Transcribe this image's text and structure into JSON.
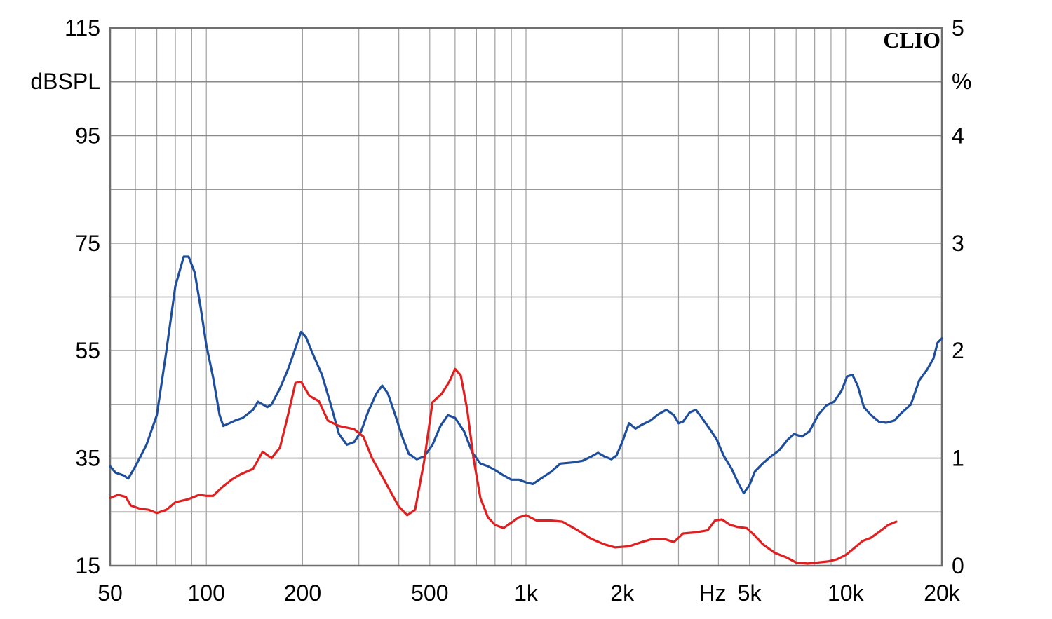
{
  "chart_data": {
    "type": "line",
    "brand": "CLIO",
    "x_scale": "log",
    "xlim": [
      50,
      20000
    ],
    "ylim_left": [
      15,
      115
    ],
    "ylim_right": [
      0,
      5
    ],
    "left_unit": "dBSPL",
    "right_unit": "%",
    "x_unit": "Hz",
    "x_ticks": [
      {
        "value": 50,
        "label": "50"
      },
      {
        "value": 100,
        "label": "100"
      },
      {
        "value": 200,
        "label": "200"
      },
      {
        "value": 500,
        "label": "500"
      },
      {
        "value": 1000,
        "label": "1k"
      },
      {
        "value": 2000,
        "label": "2k"
      },
      {
        "value": 5000,
        "label": "5k"
      },
      {
        "value": 10000,
        "label": "10k"
      },
      {
        "value": 20000,
        "label": "20k"
      }
    ],
    "left_ticks": [
      "115",
      "95",
      "75",
      "55",
      "35",
      "15"
    ],
    "right_ticks": [
      "5",
      "4",
      "3",
      "2",
      "1",
      "0"
    ],
    "grid": true,
    "series": [
      {
        "color": "#1f4e9c",
        "axis": "left",
        "points": [
          [
            50,
            33.5
          ],
          [
            52,
            32.3
          ],
          [
            55,
            31.8
          ],
          [
            57,
            31.2
          ],
          [
            60,
            33.5
          ],
          [
            65,
            37.5
          ],
          [
            70,
            43
          ],
          [
            75,
            55
          ],
          [
            80,
            67
          ],
          [
            85,
            72.5
          ],
          [
            88,
            72.5
          ],
          [
            92,
            69.5
          ],
          [
            96,
            63
          ],
          [
            100,
            56
          ],
          [
            105,
            50
          ],
          [
            110,
            43
          ],
          [
            113,
            41
          ],
          [
            118,
            41.5
          ],
          [
            123,
            42
          ],
          [
            130,
            42.5
          ],
          [
            140,
            44
          ],
          [
            145,
            45.5
          ],
          [
            150,
            45
          ],
          [
            155,
            44.5
          ],
          [
            160,
            45
          ],
          [
            170,
            48
          ],
          [
            180,
            51.5
          ],
          [
            190,
            55.5
          ],
          [
            198,
            58.5
          ],
          [
            205,
            57.5
          ],
          [
            215,
            54.5
          ],
          [
            230,
            50.5
          ],
          [
            245,
            45
          ],
          [
            260,
            39.5
          ],
          [
            275,
            37.5
          ],
          [
            290,
            38
          ],
          [
            305,
            40
          ],
          [
            320,
            43.5
          ],
          [
            340,
            47
          ],
          [
            355,
            48.5
          ],
          [
            370,
            47
          ],
          [
            390,
            43
          ],
          [
            410,
            39
          ],
          [
            430,
            35.8
          ],
          [
            455,
            34.8
          ],
          [
            480,
            35.3
          ],
          [
            510,
            37.5
          ],
          [
            540,
            41
          ],
          [
            570,
            43
          ],
          [
            600,
            42.5
          ],
          [
            640,
            40
          ],
          [
            680,
            36
          ],
          [
            720,
            34
          ],
          [
            760,
            33.5
          ],
          [
            800,
            32.8
          ],
          [
            850,
            31.8
          ],
          [
            900,
            31
          ],
          [
            950,
            31
          ],
          [
            1000,
            30.5
          ],
          [
            1050,
            30.2
          ],
          [
            1100,
            31
          ],
          [
            1200,
            32.5
          ],
          [
            1280,
            34
          ],
          [
            1400,
            34.2
          ],
          [
            1500,
            34.5
          ],
          [
            1600,
            35.3
          ],
          [
            1680,
            36
          ],
          [
            1760,
            35.3
          ],
          [
            1850,
            34.8
          ],
          [
            1920,
            35.5
          ],
          [
            2000,
            38
          ],
          [
            2100,
            41.5
          ],
          [
            2200,
            40.5
          ],
          [
            2300,
            41.2
          ],
          [
            2450,
            42
          ],
          [
            2600,
            43.2
          ],
          [
            2750,
            44
          ],
          [
            2900,
            43
          ],
          [
            3000,
            41.5
          ],
          [
            3100,
            41.8
          ],
          [
            3250,
            43.5
          ],
          [
            3400,
            44
          ],
          [
            3550,
            42.5
          ],
          [
            3750,
            40.5
          ],
          [
            3950,
            38.5
          ],
          [
            4150,
            35.5
          ],
          [
            4400,
            33
          ],
          [
            4600,
            30.5
          ],
          [
            4800,
            28.5
          ],
          [
            5000,
            30
          ],
          [
            5200,
            32.5
          ],
          [
            5500,
            34
          ],
          [
            5800,
            35.2
          ],
          [
            6200,
            36.5
          ],
          [
            6600,
            38.5
          ],
          [
            6900,
            39.5
          ],
          [
            7300,
            39
          ],
          [
            7700,
            40
          ],
          [
            8200,
            43
          ],
          [
            8700,
            44.8
          ],
          [
            9200,
            45.5
          ],
          [
            9700,
            47.5
          ],
          [
            10100,
            50.2
          ],
          [
            10500,
            50.5
          ],
          [
            10900,
            48.5
          ],
          [
            11400,
            44.5
          ],
          [
            12000,
            43
          ],
          [
            12700,
            41.8
          ],
          [
            13400,
            41.6
          ],
          [
            14200,
            42
          ],
          [
            15000,
            43.5
          ],
          [
            16000,
            45
          ],
          [
            17000,
            49.5
          ],
          [
            18000,
            51.5
          ],
          [
            18800,
            53.5
          ],
          [
            19400,
            56.5
          ],
          [
            20000,
            57.3
          ]
        ]
      },
      {
        "color": "#e02020",
        "axis": "right",
        "points": [
          [
            50,
            0.63
          ],
          [
            53,
            0.66
          ],
          [
            56,
            0.64
          ],
          [
            58,
            0.56
          ],
          [
            62,
            0.53
          ],
          [
            66,
            0.52
          ],
          [
            70,
            0.49
          ],
          [
            75,
            0.52
          ],
          [
            80,
            0.59
          ],
          [
            88,
            0.62
          ],
          [
            95,
            0.66
          ],
          [
            100,
            0.65
          ],
          [
            105,
            0.65
          ],
          [
            112,
            0.73
          ],
          [
            120,
            0.8
          ],
          [
            128,
            0.85
          ],
          [
            140,
            0.9
          ],
          [
            150,
            1.06
          ],
          [
            160,
            1.0
          ],
          [
            170,
            1.1
          ],
          [
            180,
            1.4
          ],
          [
            190,
            1.7
          ],
          [
            198,
            1.71
          ],
          [
            210,
            1.58
          ],
          [
            225,
            1.53
          ],
          [
            240,
            1.35
          ],
          [
            260,
            1.3
          ],
          [
            290,
            1.27
          ],
          [
            310,
            1.2
          ],
          [
            330,
            1.0
          ],
          [
            355,
            0.83
          ],
          [
            380,
            0.67
          ],
          [
            400,
            0.55
          ],
          [
            425,
            0.47
          ],
          [
            450,
            0.52
          ],
          [
            480,
            0.97
          ],
          [
            510,
            1.52
          ],
          [
            545,
            1.6
          ],
          [
            575,
            1.71
          ],
          [
            600,
            1.83
          ],
          [
            625,
            1.77
          ],
          [
            655,
            1.45
          ],
          [
            685,
            1.0
          ],
          [
            720,
            0.63
          ],
          [
            760,
            0.45
          ],
          [
            800,
            0.38
          ],
          [
            850,
            0.35
          ],
          [
            900,
            0.4
          ],
          [
            950,
            0.45
          ],
          [
            1000,
            0.47
          ],
          [
            1080,
            0.42
          ],
          [
            1200,
            0.42
          ],
          [
            1300,
            0.41
          ],
          [
            1450,
            0.33
          ],
          [
            1600,
            0.25
          ],
          [
            1750,
            0.2
          ],
          [
            1900,
            0.17
          ],
          [
            2100,
            0.18
          ],
          [
            2300,
            0.22
          ],
          [
            2500,
            0.25
          ],
          [
            2700,
            0.25
          ],
          [
            2900,
            0.22
          ],
          [
            3100,
            0.3
          ],
          [
            3400,
            0.31
          ],
          [
            3700,
            0.33
          ],
          [
            3900,
            0.42
          ],
          [
            4100,
            0.43
          ],
          [
            4350,
            0.38
          ],
          [
            4600,
            0.36
          ],
          [
            4900,
            0.35
          ],
          [
            5200,
            0.28
          ],
          [
            5500,
            0.2
          ],
          [
            6000,
            0.12
          ],
          [
            6500,
            0.08
          ],
          [
            7000,
            0.03
          ],
          [
            7600,
            0.02
          ],
          [
            8200,
            0.03
          ],
          [
            8800,
            0.04
          ],
          [
            9400,
            0.06
          ],
          [
            10000,
            0.1
          ],
          [
            10600,
            0.16
          ],
          [
            11300,
            0.23
          ],
          [
            12000,
            0.26
          ],
          [
            12800,
            0.32
          ],
          [
            13600,
            0.38
          ],
          [
            14400,
            0.41
          ]
        ]
      }
    ]
  }
}
